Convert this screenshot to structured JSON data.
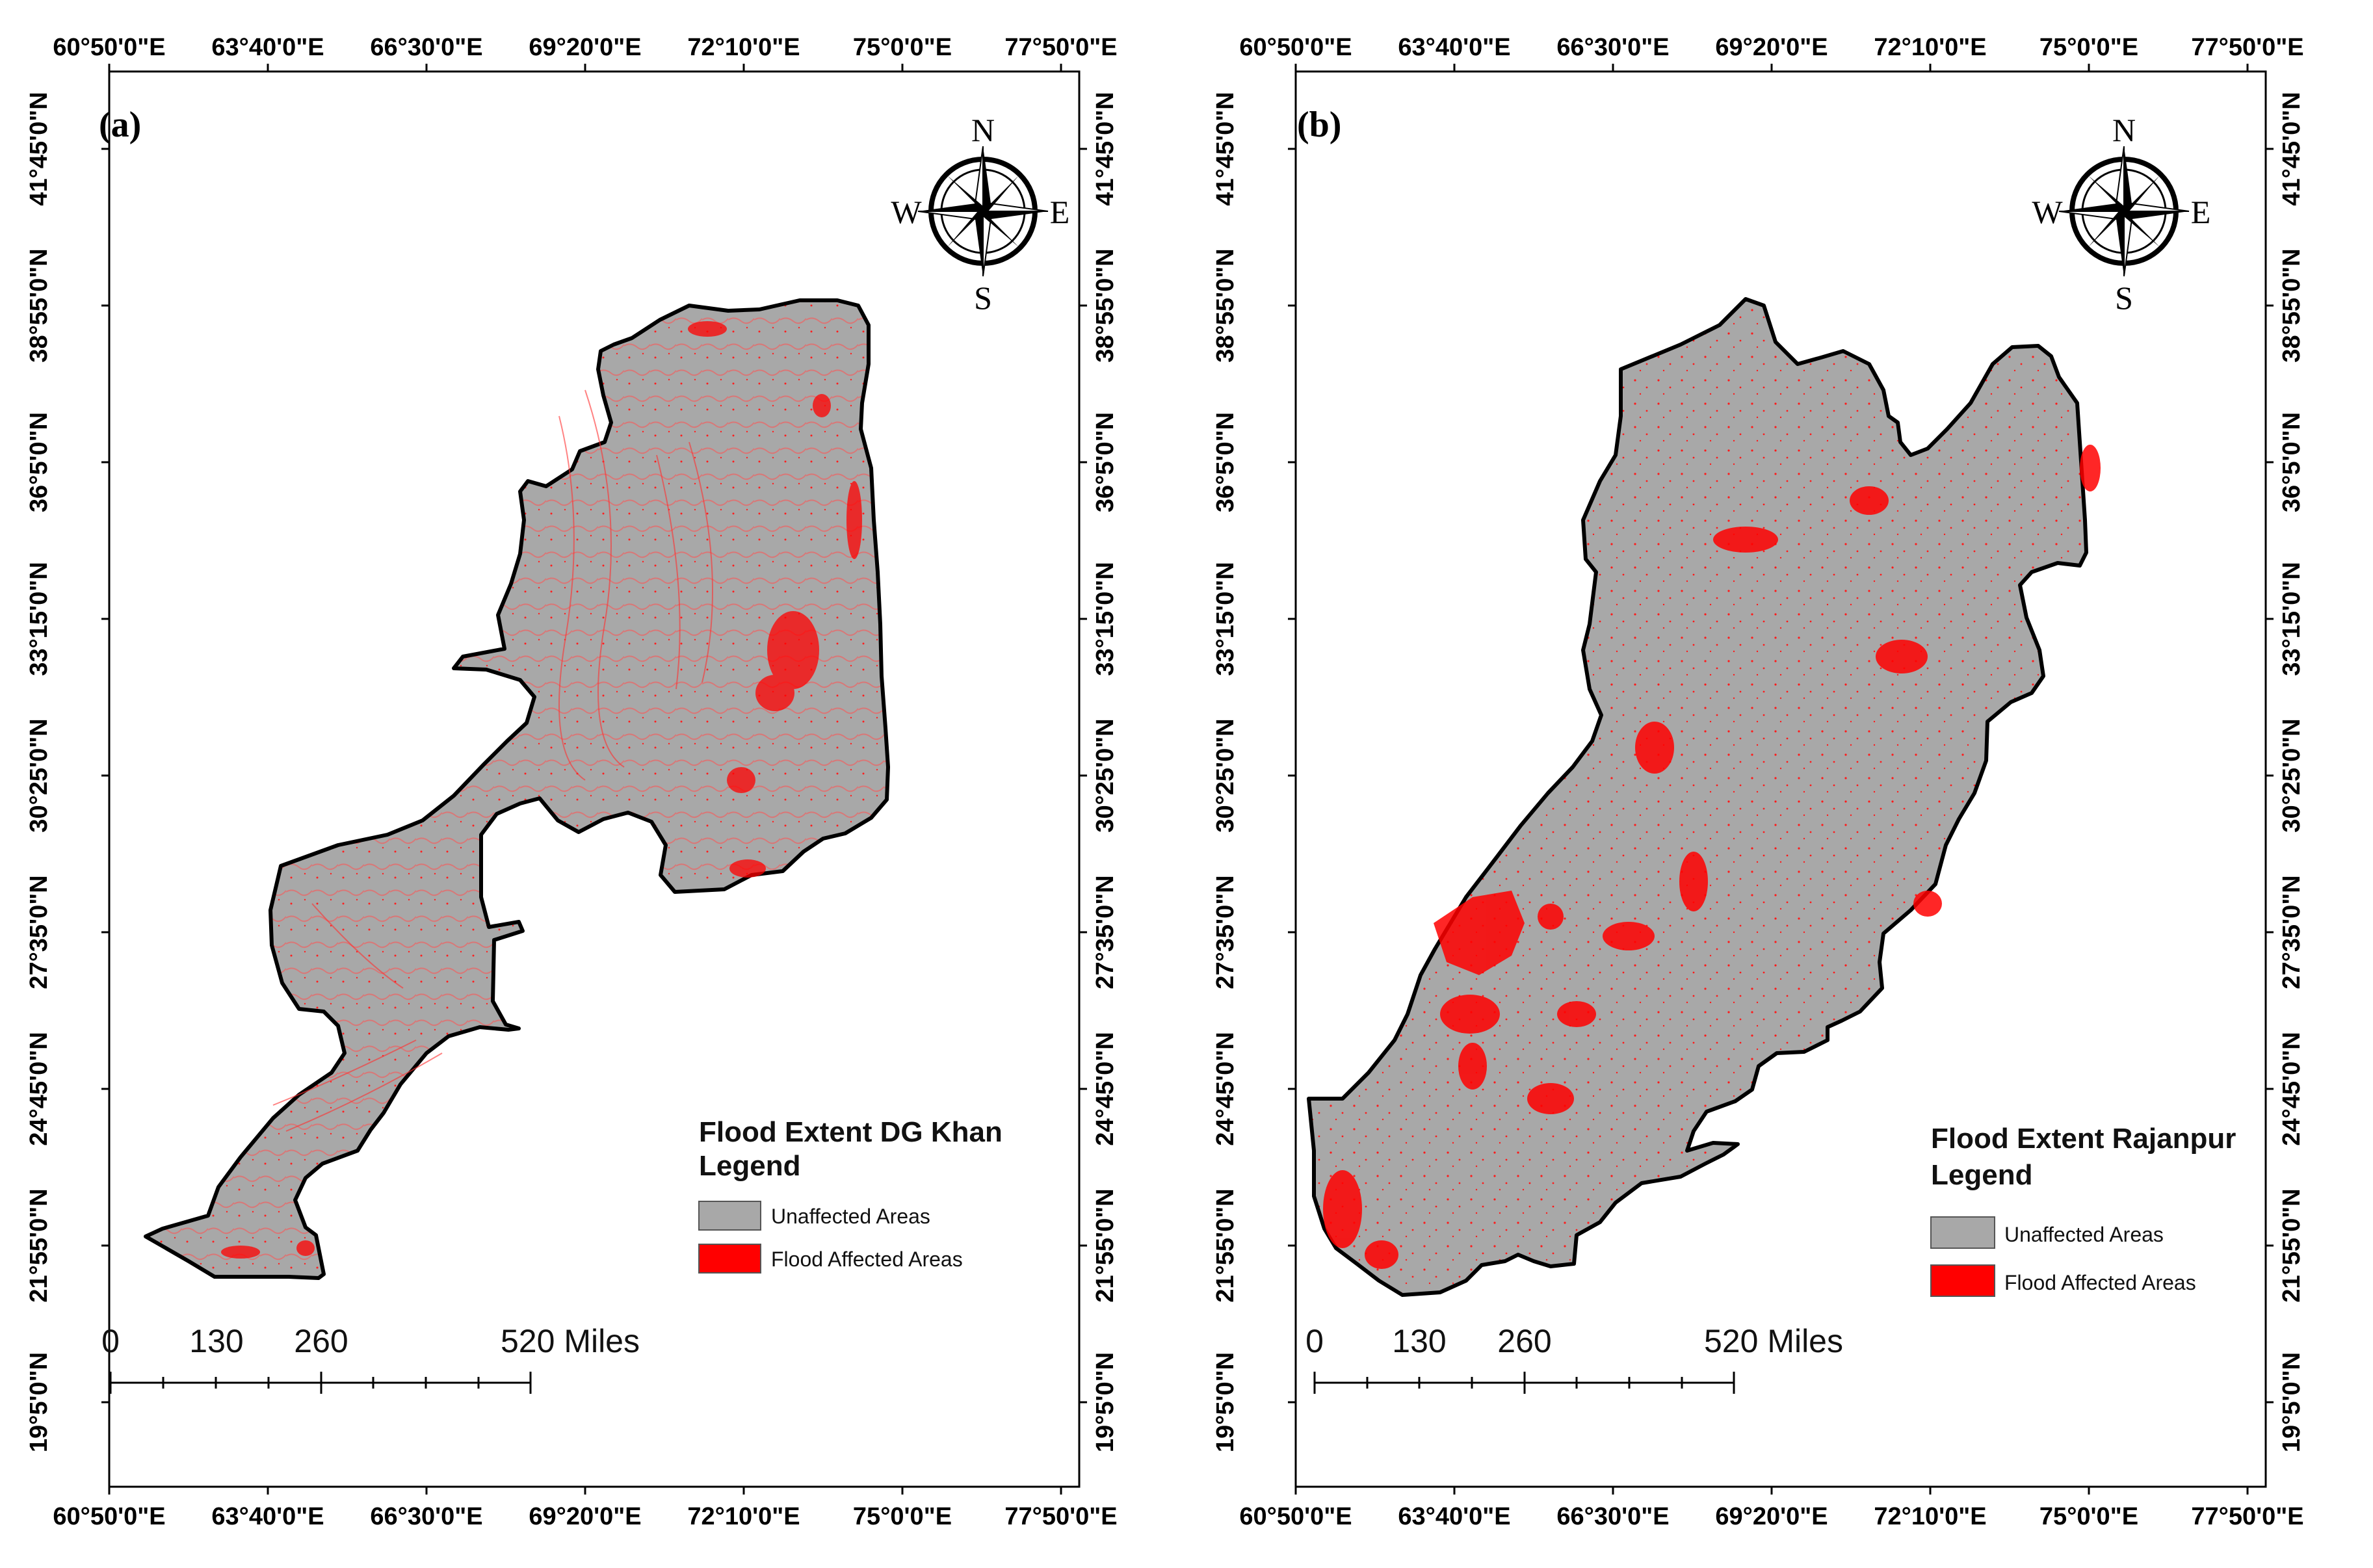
{
  "panels": [
    {
      "label": "(a)",
      "x_ticks": [
        "60°50'0\"E",
        "63°40'0\"E",
        "66°30'0\"E",
        "69°20'0\"E",
        "72°10'0\"E",
        "75°0'0\"E",
        "77°50'0\"E"
      ],
      "y_ticks": [
        "41°45'0\"N",
        "38°55'0\"N",
        "36°5'0\"N",
        "33°15'0\"N",
        "30°25'0\"N",
        "27°35'0\"N",
        "24°45'0\"N",
        "21°55'0\"N",
        "19°5'0\"N"
      ],
      "compass": {
        "n": "N",
        "s": "S",
        "e": "E",
        "w": "W"
      },
      "legend": {
        "title_line1": "Flood Extent DG Khan",
        "title_line2": "Legend",
        "items": [
          {
            "label": "Unaffected Areas",
            "color": "#a8a8a8"
          },
          {
            "label": "Flood Affected Areas",
            "color": "#ff0000"
          }
        ]
      },
      "scale": {
        "labels": [
          "0",
          "130",
          "260",
          "520 Miles"
        ]
      }
    },
    {
      "label": "(b)",
      "x_ticks": [
        "60°50'0\"E",
        "63°40'0\"E",
        "66°30'0\"E",
        "69°20'0\"E",
        "72°10'0\"E",
        "75°0'0\"E",
        "77°50'0\"E"
      ],
      "y_ticks": [
        "41°45'0\"N",
        "38°55'0\"N",
        "36°5'0\"N",
        "33°15'0\"N",
        "30°25'0\"N",
        "27°35'0\"N",
        "24°45'0\"N",
        "21°55'0\"N",
        "19°5'0\"N"
      ],
      "compass": {
        "n": "N",
        "s": "S",
        "e": "E",
        "w": "W"
      },
      "legend": {
        "title_line1": "Flood Extent Rajanpur",
        "title_line2": "Legend",
        "items": [
          {
            "label": "Unaffected Areas",
            "color": "#a8a8a8"
          },
          {
            "label": "Flood Affected Areas",
            "color": "#ff0000"
          }
        ]
      },
      "scale": {
        "labels": [
          "0",
          "130",
          "260",
          "520 Miles"
        ]
      }
    }
  ]
}
